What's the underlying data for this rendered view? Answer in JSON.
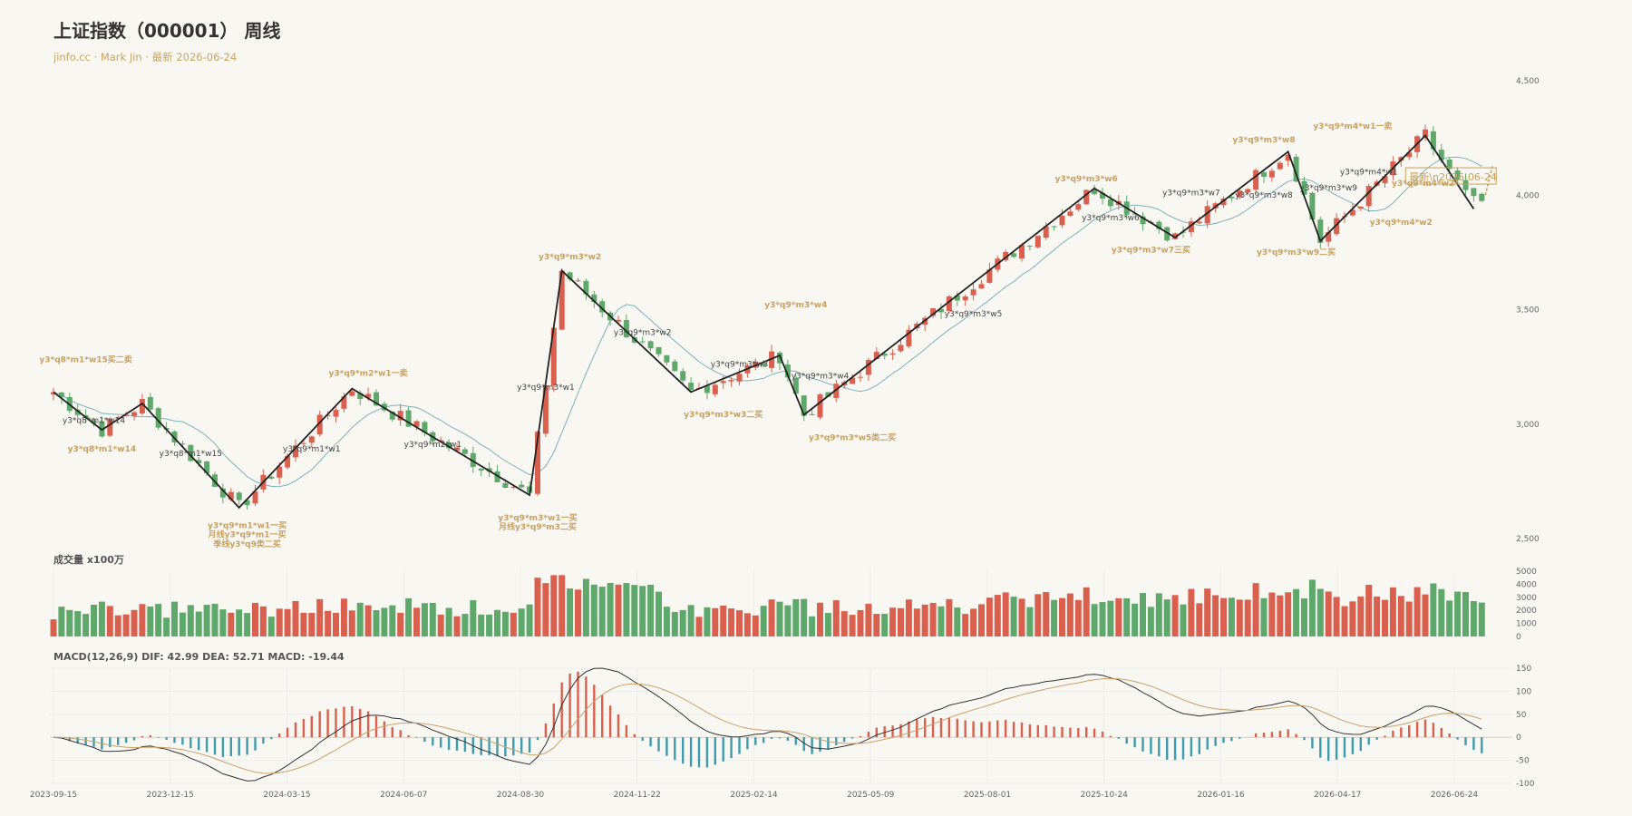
{
  "header": {
    "title": "上证指数（000001） 周线",
    "subtitle": "jinfo.cc · Mark Jin · 最新 2026-06-24"
  },
  "panels": {
    "volume_title": "成交量 x100万",
    "macd_title": "MACD(12,26,9) DIF: 42.99 DEA: 52.71 MACD: -19.44"
  },
  "colors": {
    "up": "#d9604e",
    "down": "#5ea86b",
    "ma": "#7ab3ba",
    "dif": "#333333",
    "dea": "#c9a06a",
    "macd_pos": "#d9604e",
    "macd_neg": "#3d9bb0",
    "gold": "#c8a060",
    "stroke": "#222222"
  },
  "chart_data": {
    "type": "candlestick",
    "x_ticks": [
      "2023-09-15",
      "2023-12-15",
      "2024-03-15",
      "2024-06-07",
      "2024-08-30",
      "2024-11-22",
      "2025-02-14",
      "2025-05-09",
      "2025-08-01",
      "2025-10-24",
      "2026-01-16",
      "2026-04-17",
      "2026-06-24"
    ],
    "price_axis": {
      "ylim": [
        2500,
        4500
      ],
      "ticks": [
        2500,
        3000,
        3500,
        4000,
        4500
      ]
    },
    "volume_axis": {
      "ylim": [
        0,
        5000
      ],
      "ticks": [
        0,
        1000,
        2000,
        3000,
        4000,
        5000
      ]
    },
    "macd_axis": {
      "ylim": [
        -100,
        150
      ],
      "ticks": [
        -100,
        -50,
        0,
        50,
        100,
        150
      ]
    },
    "latest_label": "最新\\n2026-06-24",
    "stroke_points": [
      {
        "x": 0,
        "y": 3140
      },
      {
        "x": 6,
        "y": 2975
      },
      {
        "x": 11,
        "y": 3090
      },
      {
        "x": 23,
        "y": 2635
      },
      {
        "x": 37,
        "y": 3155
      },
      {
        "x": 59,
        "y": 2690
      },
      {
        "x": 63,
        "y": 3670
      },
      {
        "x": 79,
        "y": 3140
      },
      {
        "x": 90,
        "y": 3300
      },
      {
        "x": 93,
        "y": 3040
      },
      {
        "x": 129,
        "y": 4030
      },
      {
        "x": 139,
        "y": 3815
      },
      {
        "x": 153,
        "y": 4190
      },
      {
        "x": 157,
        "y": 3800
      },
      {
        "x": 170,
        "y": 4260
      },
      {
        "x": 176,
        "y": 3940
      }
    ],
    "annotations": [
      {
        "i": 4,
        "p": 3270,
        "text": "y3*q8*m1*w15买二卖",
        "style": "gold"
      },
      {
        "i": 5,
        "p": 3005,
        "text": "y3*q8*m1*w14",
        "style": "gray"
      },
      {
        "i": 6,
        "p": 2880,
        "text": "y3*q8*m1*w14",
        "style": "gold"
      },
      {
        "i": 17,
        "p": 2860,
        "text": "y3*q8*m1*w15",
        "style": "gray"
      },
      {
        "i": 32,
        "p": 2880,
        "text": "y3*q9*m1*w1",
        "style": "gray"
      },
      {
        "i": 24,
        "p": 2545,
        "text": "y3*q9*m1*w1一买",
        "style": "gold"
      },
      {
        "i": 24,
        "p": 2505,
        "text": "月线y3*q9*m1一买",
        "style": "gold"
      },
      {
        "i": 24,
        "p": 2465,
        "text": "季线y3*q9类二买",
        "style": "gold"
      },
      {
        "i": 39,
        "p": 3210,
        "text": "y3*q9*m2*w1一卖",
        "style": "gold"
      },
      {
        "i": 47,
        "p": 2900,
        "text": "y3*q9*m2*w1",
        "style": "gray"
      },
      {
        "i": 60,
        "p": 2580,
        "text": "y3*q9*m3*w1一买",
        "style": "gold"
      },
      {
        "i": 60,
        "p": 2540,
        "text": "月线y3*q9*m3二买",
        "style": "gold"
      },
      {
        "i": 61,
        "p": 3150,
        "text": "y3*q9*m3*w1",
        "style": "gray"
      },
      {
        "i": 64,
        "p": 3720,
        "text": "y3*q9*m3*w2",
        "style": "gold"
      },
      {
        "i": 73,
        "p": 3390,
        "text": "y3*q9*m3*w2",
        "style": "gray"
      },
      {
        "i": 83,
        "p": 3030,
        "text": "y3*q9*m3*w3二买",
        "style": "gold"
      },
      {
        "i": 85,
        "p": 3250,
        "text": "y3*q9*m3*w3",
        "style": "gray"
      },
      {
        "i": 92,
        "p": 3510,
        "text": "y3*q9*m3*w4",
        "style": "gold"
      },
      {
        "i": 95,
        "p": 3200,
        "text": "y3*q9*m3*w4",
        "style": "gray"
      },
      {
        "i": 99,
        "p": 2930,
        "text": "y3*q9*m3*w5类二买",
        "style": "gold"
      },
      {
        "i": 114,
        "p": 3470,
        "text": "y3*q9*m3*w5",
        "style": "gray"
      },
      {
        "i": 128,
        "p": 4060,
        "text": "y3*q9*m3*w6",
        "style": "gold"
      },
      {
        "i": 131,
        "p": 3890,
        "text": "y3*q9*m3*w6",
        "style": "gray"
      },
      {
        "i": 136,
        "p": 3750,
        "text": "y3*q9*m3*w7三买",
        "style": "gold"
      },
      {
        "i": 141,
        "p": 4000,
        "text": "y3*q9*m3*w7",
        "style": "gray"
      },
      {
        "i": 150,
        "p": 4230,
        "text": "y3*q9*m3*w8",
        "style": "gold"
      },
      {
        "i": 150,
        "p": 3990,
        "text": "y3*q9*m3*w8",
        "style": "gray"
      },
      {
        "i": 154,
        "p": 3740,
        "text": "y3*q9*m3*w9二买",
        "style": "gold"
      },
      {
        "i": 158,
        "p": 4020,
        "text": "y3*q9*m3*w9",
        "style": "gray"
      },
      {
        "i": 161,
        "p": 4290,
        "text": "y3*q9*m4*w1一卖",
        "style": "gold"
      },
      {
        "i": 163,
        "p": 4090,
        "text": "y3*q9*m4*w1",
        "style": "gray"
      },
      {
        "i": 167,
        "p": 3870,
        "text": "y3*q9*m4*w2",
        "style": "gold"
      },
      {
        "i": 170,
        "p": 4040,
        "text": "y3*q9*m4*w2*",
        "style": "gold"
      }
    ]
  }
}
